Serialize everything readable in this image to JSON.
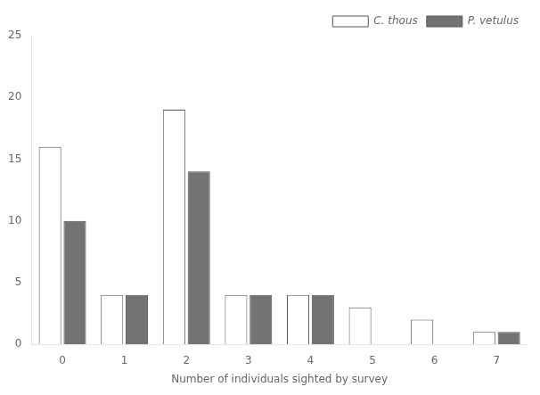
{
  "chart_data": {
    "type": "bar",
    "xlabel": "Number of individuals sighted by survey",
    "categories": [
      0,
      1,
      2,
      3,
      4,
      5,
      6,
      7
    ],
    "series": [
      {
        "name": "C. thous",
        "color": "#ffffff",
        "values": [
          16,
          4,
          19,
          4,
          4,
          3,
          2,
          1
        ]
      },
      {
        "name": "P. vetulus",
        "color": "#737373",
        "values": [
          10,
          4,
          14,
          4,
          4,
          0,
          0,
          1
        ]
      }
    ],
    "ylim": [
      0,
      25
    ],
    "yticks": [
      0,
      5,
      10,
      15,
      20,
      25
    ],
    "grid": false,
    "legend": "upper right"
  }
}
